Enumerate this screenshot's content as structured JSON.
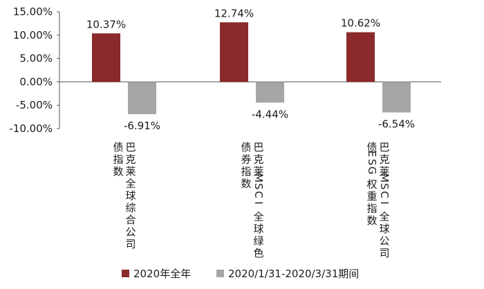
{
  "chart_data": {
    "type": "bar",
    "categories": [
      [
        "巴克莱全球综合公司",
        "债指数"
      ],
      [
        "巴克莱MSCI全球绿色",
        "债券指数"
      ],
      [
        "巴克莱MSCI全球公司",
        "债ESG权重指数"
      ]
    ],
    "series": [
      {
        "name": "2020年全年",
        "color": "#8B2A2A",
        "values": [
          10.37,
          12.74,
          10.62
        ],
        "labels": [
          "10.37%",
          "12.74%",
          "10.62%"
        ]
      },
      {
        "name": "2020/1/31-2020/3/31期间",
        "color": "#A6A6A6",
        "values": [
          -6.91,
          -4.44,
          -6.54
        ],
        "labels": [
          "-6.91%",
          "-4.44%",
          "-6.54%"
        ]
      }
    ],
    "yticks": [
      15,
      10,
      5,
      0,
      -5,
      -10
    ],
    "ytick_labels": [
      "15.00%",
      "10.00%",
      "5.00%",
      "0.00%",
      "-5.00%",
      "-10.00%"
    ],
    "ylim": [
      -10,
      15
    ],
    "grid": false,
    "legend_position": "bottom"
  }
}
